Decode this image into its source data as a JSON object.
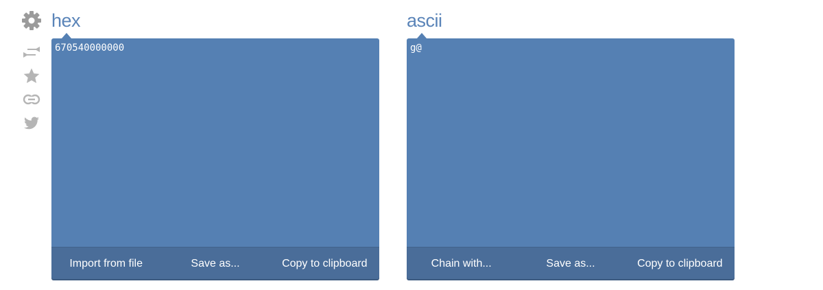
{
  "sidebar": {
    "icons": [
      "gear-icon",
      "swap-icon",
      "star-icon",
      "link-icon",
      "twitter-icon"
    ]
  },
  "left_panel": {
    "title": "hex",
    "content": "670540000000",
    "buttons": [
      "Import from file",
      "Save as...",
      "Copy to clipboard"
    ]
  },
  "right_panel": {
    "title": "ascii",
    "content": "g\u0005@\u0000\u0000\u0000",
    "buttons": [
      "Chain with...",
      "Save as...",
      "Copy to clipboard"
    ]
  },
  "colors": {
    "title": "#5a84b8",
    "editor_bg": "#5580b3",
    "toolbar_bg": "#4a6d99",
    "icon_gray": "#9b9b9b"
  }
}
